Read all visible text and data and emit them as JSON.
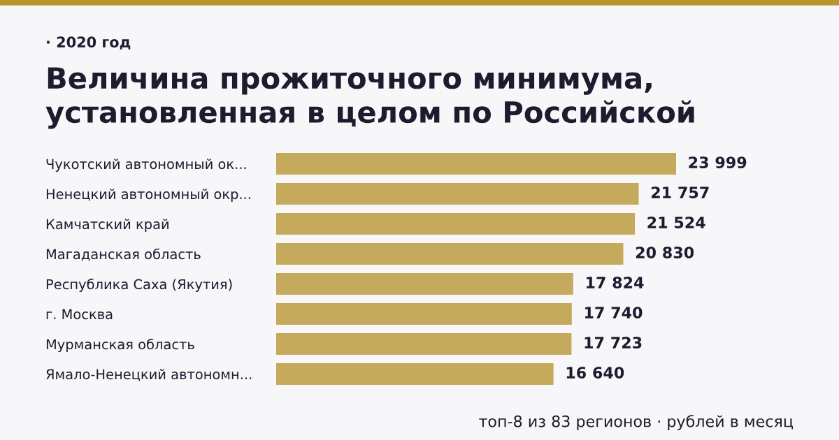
{
  "chart_data": {
    "type": "bar",
    "orientation": "horizontal",
    "subtitle": "· 2020 год",
    "title": "Величина прожиточного минимума,\nустановленная в целом по Российской",
    "categories": [
      "Чукотский автономный ок...",
      "Ненецкий автономный окр...",
      "Камчатский край",
      "Магаданская область",
      "Республика Саха (Якутия)",
      "г. Москва",
      "Мурманская область",
      "Ямало-Ненецкий автономн..."
    ],
    "values": [
      23999,
      21757,
      21524,
      20830,
      17824,
      17740,
      17723,
      16640
    ],
    "value_labels": [
      "23 999",
      "21 757",
      "21 524",
      "20 830",
      "17 824",
      "17 740",
      "17 723",
      "16 640"
    ],
    "color": "#c5a95c",
    "annotations": [
      "топ-8 из 83 регионов · рублей в месяц"
    ],
    "grid": false,
    "legend": false
  }
}
